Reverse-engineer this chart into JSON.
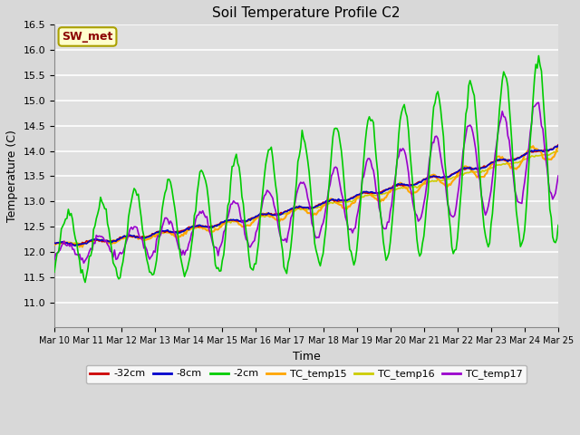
{
  "title": "Soil Temperature Profile C2",
  "xlabel": "Time",
  "ylabel": "Temperature (C)",
  "ylim": [
    10.5,
    16.5
  ],
  "yticks": [
    11.0,
    11.5,
    12.0,
    12.5,
    13.0,
    13.5,
    14.0,
    14.5,
    15.0,
    15.5,
    16.0,
    16.5
  ],
  "fig_bg_color": "#d8d8d8",
  "plot_bg_color": "#e0e0e0",
  "annotation_text": "SW_met",
  "annotation_color": "#8b0000",
  "annotation_bg": "#ffffcc",
  "annotation_border": "#aaa000",
  "colors": {
    "-32cm": "#cc0000",
    "-8cm": "#0000cc",
    "-2cm": "#00cc00",
    "TC_temp15": "#ffa500",
    "TC_temp16": "#cccc00",
    "TC_temp17": "#9900cc"
  },
  "legend_labels": [
    "-32cm",
    "-8cm",
    "-2cm",
    "TC_temp15",
    "TC_temp16",
    "TC_temp17"
  ],
  "n_points": 361,
  "days": 15
}
